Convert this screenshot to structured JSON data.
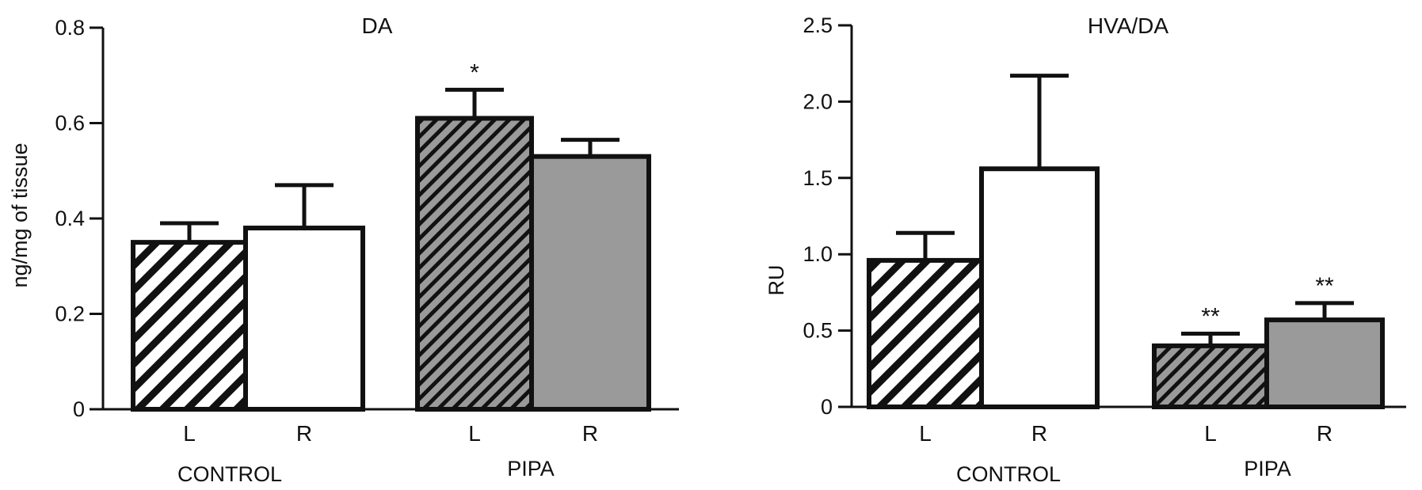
{
  "chart_data": [
    {
      "type": "bar",
      "title": "DA",
      "ylabel": "ng/mg of tissue",
      "ylim": [
        0,
        0.8
      ],
      "yticks": [
        0,
        0.2,
        0.4,
        0.6,
        0.8
      ],
      "ytick_labels": [
        "0",
        "0.2",
        "0.4",
        "0.6",
        "0.8"
      ],
      "groups": [
        {
          "label": "CONTROL",
          "bars": [
            {
              "category": "L",
              "value": 0.35,
              "error": 0.04,
              "pattern": "hatch-white",
              "annotation": ""
            },
            {
              "category": "R",
              "value": 0.38,
              "error": 0.09,
              "pattern": "white",
              "annotation": ""
            }
          ]
        },
        {
          "label": "PIPA",
          "bars": [
            {
              "category": "L",
              "value": 0.61,
              "error": 0.06,
              "pattern": "hatch-gray",
              "annotation": "*"
            },
            {
              "category": "R",
              "value": 0.53,
              "error": 0.035,
              "pattern": "gray",
              "annotation": ""
            }
          ]
        }
      ]
    },
    {
      "type": "bar",
      "title": "HVA/DA",
      "ylabel": "RU",
      "ylim": [
        0,
        2.5
      ],
      "yticks": [
        0,
        0.5,
        1.0,
        1.5,
        2.0,
        2.5
      ],
      "ytick_labels": [
        "0",
        "0.5",
        "1.0",
        "1.5",
        "2.0",
        "2.5"
      ],
      "groups": [
        {
          "label": "CONTROL",
          "bars": [
            {
              "category": "L",
              "value": 0.96,
              "error": 0.18,
              "pattern": "hatch-white",
              "annotation": ""
            },
            {
              "category": "R",
              "value": 1.56,
              "error": 0.61,
              "pattern": "white",
              "annotation": ""
            }
          ]
        },
        {
          "label": "PIPA",
          "bars": [
            {
              "category": "L",
              "value": 0.4,
              "error": 0.08,
              "pattern": "hatch-gray",
              "annotation": "**"
            },
            {
              "category": "R",
              "value": 0.57,
              "error": 0.11,
              "pattern": "gray",
              "annotation": "**"
            }
          ]
        }
      ]
    }
  ],
  "colors": {
    "ink": "#111111",
    "bar_gray": "#9a9a9a",
    "bar_white": "#ffffff"
  }
}
